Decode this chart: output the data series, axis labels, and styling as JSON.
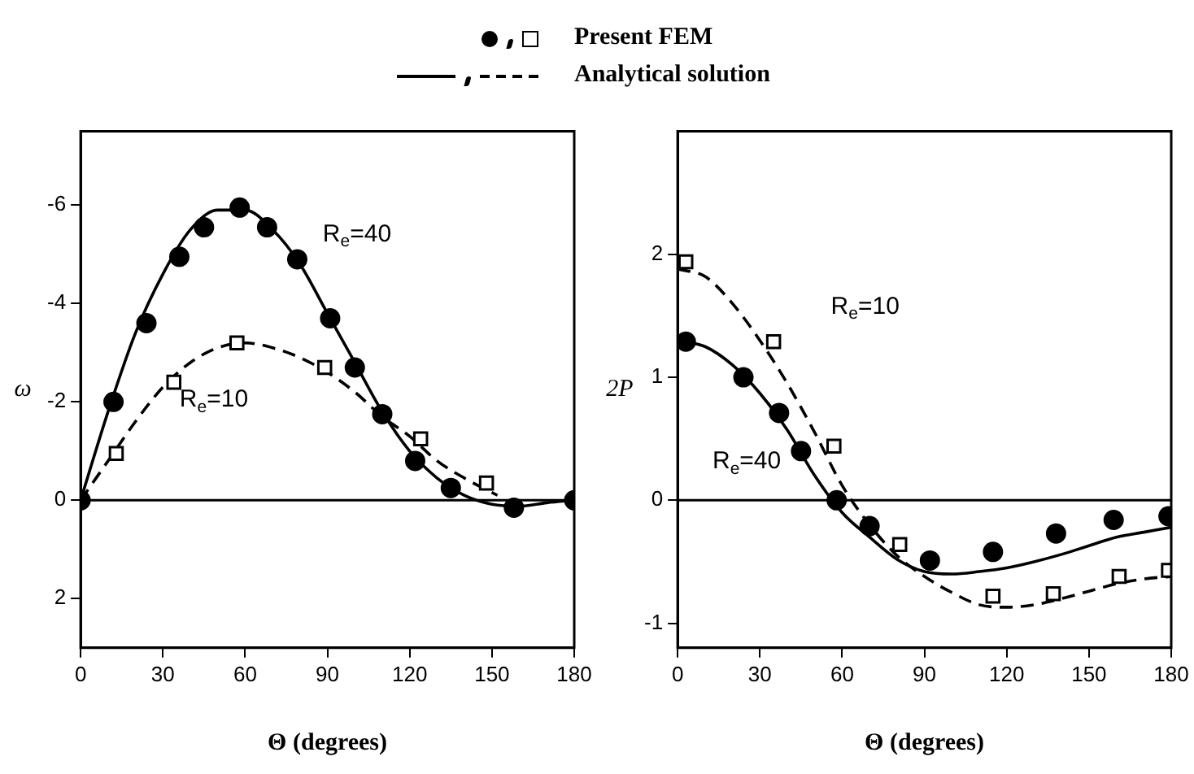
{
  "chart_data": [
    {
      "type": "scatter",
      "xlabel": "Θ (degrees)",
      "ylabel": "ω",
      "xlim": [
        0,
        180
      ],
      "xticks": [
        0,
        30,
        60,
        90,
        120,
        150,
        180
      ],
      "ylim": [
        3,
        -7.5
      ],
      "yticks": [
        -6,
        -4,
        -2,
        0,
        2
      ],
      "legend": "top",
      "grid": false,
      "series": [
        {
          "type": "scatter",
          "marker": "circle",
          "color": "#000000",
          "x": [
            0,
            12,
            24,
            36,
            45,
            58,
            68,
            79,
            91,
            100,
            110,
            122,
            135,
            158,
            180
          ],
          "values": [
            0,
            -2.0,
            -3.6,
            -4.95,
            -5.55,
            -5.95,
            -5.55,
            -4.9,
            -3.7,
            -2.7,
            -1.75,
            -0.8,
            -0.25,
            0.15,
            0
          ]
        },
        {
          "name": "Present FEM",
          "type": "scatter",
          "marker": "square",
          "color": "#000000",
          "x": [
            13,
            34,
            57,
            89,
            124,
            148
          ],
          "values": [
            -0.95,
            -2.4,
            -3.2,
            -2.7,
            -1.25,
            -0.35
          ]
        },
        {
          "type": "line",
          "marker": "none",
          "line_style": "solid",
          "color": "#000000",
          "x": [
            0,
            10,
            20,
            30,
            40,
            50,
            60,
            70,
            80,
            90,
            100,
            110,
            120,
            130,
            140,
            150,
            160,
            170,
            180
          ],
          "values": [
            0,
            -1.8,
            -3.4,
            -4.6,
            -5.5,
            -5.9,
            -5.9,
            -5.5,
            -4.8,
            -3.8,
            -2.8,
            -1.8,
            -1.0,
            -0.45,
            -0.1,
            0.08,
            0.12,
            0.05,
            0
          ]
        },
        {
          "name": "Analytical solution",
          "type": "line",
          "marker": "none",
          "line_style": "dashed",
          "color": "#000000",
          "x": [
            0,
            10,
            20,
            30,
            40,
            50,
            60,
            70,
            80,
            90,
            100,
            110,
            120,
            130,
            140,
            152
          ],
          "values": [
            0,
            -0.8,
            -1.6,
            -2.3,
            -2.8,
            -3.1,
            -3.2,
            -3.1,
            -2.9,
            -2.6,
            -2.2,
            -1.7,
            -1.3,
            -0.8,
            -0.45,
            -0.1
          ]
        }
      ],
      "ref_lines": [
        {
          "axis": "y",
          "value": 0,
          "color": "#000000"
        }
      ],
      "annotations": [
        "R$_{e}$=40",
        "R$_{e}$=10"
      ]
    },
    {
      "type": "scatter",
      "xlabel": "Θ (degrees)",
      "ylabel": "2P",
      "xlim": [
        0,
        180
      ],
      "xticks": [
        0,
        30,
        60,
        90,
        120,
        150,
        180
      ],
      "ylim": [
        -1.2,
        3
      ],
      "yticks": [
        -1,
        0,
        1,
        2
      ],
      "grid": false,
      "series": [
        {
          "type": "scatter",
          "marker": "circle",
          "color": "#000000",
          "x": [
            3,
            24,
            37,
            45,
            58,
            70,
            92,
            115,
            138,
            159,
            179
          ],
          "values": [
            1.29,
            1.0,
            0.71,
            0.4,
            0,
            -0.21,
            -0.49,
            -0.42,
            -0.27,
            -0.16,
            -0.13
          ]
        },
        {
          "type": "scatter",
          "marker": "square",
          "color": "#000000",
          "x": [
            3,
            35,
            57,
            81,
            115,
            137,
            161,
            179
          ],
          "values": [
            1.94,
            1.29,
            0.44,
            -0.36,
            -0.78,
            -0.76,
            -0.62,
            -0.57
          ]
        },
        {
          "type": "line",
          "marker": "none",
          "line_style": "solid",
          "color": "#000000",
          "x": [
            0,
            10,
            20,
            30,
            40,
            50,
            60,
            70,
            80,
            90,
            100,
            110,
            120,
            130,
            140,
            150,
            160,
            170,
            180
          ],
          "values": [
            1.3,
            1.25,
            1.1,
            0.87,
            0.57,
            0.2,
            -0.1,
            -0.3,
            -0.48,
            -0.58,
            -0.6,
            -0.58,
            -0.55,
            -0.5,
            -0.44,
            -0.37,
            -0.3,
            -0.26,
            -0.22
          ]
        },
        {
          "type": "line",
          "marker": "none",
          "line_style": "dashed",
          "color": "#000000",
          "x": [
            0,
            10,
            20,
            30,
            40,
            50,
            60,
            70,
            80,
            90,
            100,
            110,
            120,
            130,
            140,
            150,
            160,
            170,
            180
          ],
          "values": [
            1.88,
            1.82,
            1.6,
            1.3,
            0.95,
            0.55,
            0.12,
            -0.2,
            -0.45,
            -0.62,
            -0.75,
            -0.85,
            -0.87,
            -0.85,
            -0.8,
            -0.74,
            -0.68,
            -0.64,
            -0.62
          ]
        }
      ],
      "ref_lines": [
        {
          "axis": "y",
          "value": 0,
          "color": "#000000"
        }
      ],
      "annotations": [
        "R$_{e}$=10",
        "R$_{e}$=40"
      ]
    }
  ]
}
